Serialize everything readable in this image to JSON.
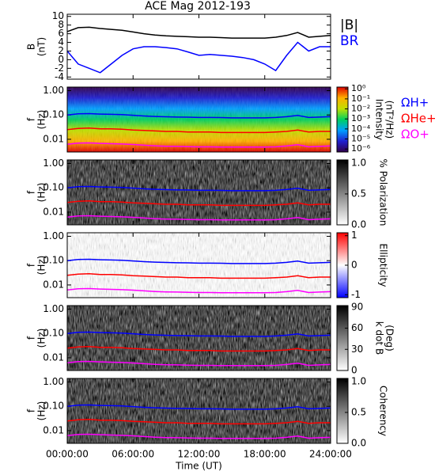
{
  "chart_data": [
    {
      "type": "line",
      "title": "ACE Mag 2012-193",
      "ylabel": [
        "B",
        "(nT)"
      ],
      "x": [
        0,
        1,
        2,
        3,
        4,
        5,
        6,
        7,
        8,
        9,
        10,
        11,
        12,
        13,
        14,
        15,
        16,
        17,
        18,
        19,
        20,
        21,
        22,
        23,
        24
      ],
      "xlim": [
        0,
        24
      ],
      "ylim": [
        -4.5,
        10.5
      ],
      "yticks": [
        -4,
        -2,
        0,
        2,
        4,
        6,
        8,
        10
      ],
      "series": [
        {
          "name": "|B|",
          "color": "#000000",
          "values": [
            6.5,
            7.4,
            7.5,
            7.2,
            7.0,
            6.8,
            6.4,
            6.0,
            5.7,
            5.5,
            5.4,
            5.3,
            5.2,
            5.2,
            5.1,
            5.0,
            5.0,
            5.0,
            5.0,
            5.2,
            5.6,
            6.3,
            5.2,
            5.4,
            5.6
          ]
        },
        {
          "name": "BR",
          "color": "#0000ff",
          "values": [
            2,
            -1,
            -2,
            -3,
            -1,
            1,
            2.5,
            3,
            3,
            2.8,
            2.5,
            1.8,
            1,
            1.2,
            1,
            0.8,
            0.5,
            0,
            -1,
            -2.5,
            1,
            4,
            2,
            3,
            3
          ]
        }
      ]
    },
    {
      "type": "spectrogram",
      "ylabel": [
        "f",
        "(Hz)"
      ],
      "x": [
        0,
        1,
        2,
        3,
        4,
        5,
        6,
        7,
        8,
        9,
        10,
        11,
        12,
        13,
        14,
        15,
        16,
        17,
        18,
        19,
        20,
        21,
        22,
        23,
        24
      ],
      "xlim": [
        0,
        24
      ],
      "ylim": [
        0.003,
        1.4
      ],
      "log_y": true,
      "yticks": [
        {
          "value": 0.01,
          "label": "0.01"
        },
        {
          "value": 0.1,
          "label": "0.10"
        },
        {
          "value": 1,
          "label": "1.00"
        }
      ],
      "colorbar": {
        "label": [
          "Intensity",
          "(nT²/Hz)"
        ],
        "lim": [
          5e-07,
          1.5
        ],
        "log": true,
        "ticks": [
          {
            "value": 1,
            "label": "10⁰"
          },
          {
            "value": 0.1,
            "label": "10⁻¹"
          },
          {
            "value": 0.01,
            "label": "10⁻²"
          },
          {
            "value": 0.001,
            "label": "10⁻³"
          },
          {
            "value": 0.0001,
            "label": "10⁻⁴"
          },
          {
            "value": 1e-05,
            "label": "10⁻⁵"
          },
          {
            "value": 1e-06,
            "label": "10⁻⁶"
          }
        ],
        "colormap": [
          "#30004a",
          "#2020d0",
          "#00a0ff",
          "#00d060",
          "#c0e000",
          "#ffb000",
          "#e00000"
        ]
      },
      "series": [
        {
          "name": "ΩH+",
          "color": "#0000ff",
          "values": [
            0.099,
            0.112,
            0.114,
            0.109,
            0.106,
            0.103,
            0.097,
            0.091,
            0.087,
            0.084,
            0.082,
            0.081,
            0.079,
            0.079,
            0.078,
            0.076,
            0.076,
            0.076,
            0.076,
            0.079,
            0.085,
            0.096,
            0.079,
            0.082,
            0.085
          ]
        },
        {
          "name": "ΩHe+",
          "color": "#ff0000",
          "values": [
            0.025,
            0.028,
            0.029,
            0.027,
            0.027,
            0.026,
            0.024,
            0.023,
            0.022,
            0.021,
            0.021,
            0.02,
            0.02,
            0.02,
            0.019,
            0.019,
            0.019,
            0.019,
            0.019,
            0.02,
            0.021,
            0.024,
            0.02,
            0.021,
            0.021
          ]
        },
        {
          "name": "ΩO+",
          "color": "#ff00ff",
          "values": [
            0.0062,
            0.007,
            0.0071,
            0.0068,
            0.0066,
            0.0064,
            0.0061,
            0.0057,
            0.0054,
            0.0052,
            0.0051,
            0.005,
            0.0049,
            0.0049,
            0.0048,
            0.0048,
            0.0048,
            0.0048,
            0.0048,
            0.0049,
            0.0053,
            0.006,
            0.0049,
            0.0051,
            0.0053
          ]
        }
      ]
    },
    {
      "type": "spectrogram",
      "ylabel": [
        "f",
        "(Hz)"
      ],
      "x": [
        0,
        1,
        2,
        3,
        4,
        5,
        6,
        7,
        8,
        9,
        10,
        11,
        12,
        13,
        14,
        15,
        16,
        17,
        18,
        19,
        20,
        21,
        22,
        23,
        24
      ],
      "xlim": [
        0,
        24
      ],
      "ylim": [
        0.003,
        1.4
      ],
      "log_y": true,
      "yticks": [
        {
          "value": 0.01,
          "label": "0.01"
        },
        {
          "value": 0.1,
          "label": "0.10"
        },
        {
          "value": 1,
          "label": "1.00"
        }
      ],
      "colorbar": {
        "label": [
          "% Polarization"
        ],
        "lim": [
          0,
          1.05
        ],
        "ticks": [
          {
            "value": 0,
            "label": "0.0"
          },
          {
            "value": 0.5,
            "label": "0.5"
          },
          {
            "value": 1,
            "label": "1.0"
          }
        ],
        "colormap": [
          "#ffffff",
          "#000000"
        ]
      },
      "series": [
        {
          "color": "#0000ff",
          "values": [
            0.099,
            0.112,
            0.114,
            0.109,
            0.106,
            0.103,
            0.097,
            0.091,
            0.087,
            0.084,
            0.082,
            0.081,
            0.079,
            0.079,
            0.078,
            0.076,
            0.076,
            0.076,
            0.076,
            0.079,
            0.085,
            0.096,
            0.079,
            0.082,
            0.085
          ]
        },
        {
          "color": "#ff0000",
          "values": [
            0.025,
            0.028,
            0.029,
            0.027,
            0.027,
            0.026,
            0.024,
            0.023,
            0.022,
            0.021,
            0.021,
            0.02,
            0.02,
            0.02,
            0.019,
            0.019,
            0.019,
            0.019,
            0.019,
            0.02,
            0.021,
            0.024,
            0.02,
            0.021,
            0.021
          ]
        },
        {
          "color": "#ff00ff",
          "values": [
            0.0062,
            0.007,
            0.0071,
            0.0068,
            0.0066,
            0.0064,
            0.0061,
            0.0057,
            0.0054,
            0.0052,
            0.0051,
            0.005,
            0.0049,
            0.0049,
            0.0048,
            0.0048,
            0.0048,
            0.0048,
            0.0048,
            0.0049,
            0.0053,
            0.006,
            0.0049,
            0.0051,
            0.0053
          ]
        }
      ]
    },
    {
      "type": "spectrogram",
      "ylabel": [
        "f",
        "(Hz)"
      ],
      "x": [
        0,
        1,
        2,
        3,
        4,
        5,
        6,
        7,
        8,
        9,
        10,
        11,
        12,
        13,
        14,
        15,
        16,
        17,
        18,
        19,
        20,
        21,
        22,
        23,
        24
      ],
      "xlim": [
        0,
        24
      ],
      "ylim": [
        0.003,
        1.4
      ],
      "log_y": true,
      "yticks": [
        {
          "value": 0.01,
          "label": "0.01"
        },
        {
          "value": 0.1,
          "label": "0.10"
        },
        {
          "value": 1,
          "label": "1.00"
        }
      ],
      "colorbar": {
        "label": [
          "Ellipticity"
        ],
        "lim": [
          -1.1,
          1.1
        ],
        "ticks": [
          -1,
          0,
          1
        ],
        "colormap": [
          "#0000ff",
          "#ffffff",
          "#ff0000"
        ]
      },
      "series": [
        {
          "color": "#0000ff",
          "values": [
            0.099,
            0.112,
            0.114,
            0.109,
            0.106,
            0.103,
            0.097,
            0.091,
            0.087,
            0.084,
            0.082,
            0.081,
            0.079,
            0.079,
            0.078,
            0.076,
            0.076,
            0.076,
            0.076,
            0.079,
            0.085,
            0.096,
            0.079,
            0.082,
            0.085
          ]
        },
        {
          "color": "#ff0000",
          "values": [
            0.025,
            0.028,
            0.029,
            0.027,
            0.027,
            0.026,
            0.024,
            0.023,
            0.022,
            0.021,
            0.021,
            0.02,
            0.02,
            0.02,
            0.019,
            0.019,
            0.019,
            0.019,
            0.019,
            0.02,
            0.021,
            0.024,
            0.02,
            0.021,
            0.021
          ]
        },
        {
          "color": "#ff00ff",
          "values": [
            0.0062,
            0.007,
            0.0071,
            0.0068,
            0.0066,
            0.0064,
            0.0061,
            0.0057,
            0.0054,
            0.0052,
            0.0051,
            0.005,
            0.0049,
            0.0049,
            0.0048,
            0.0048,
            0.0048,
            0.0048,
            0.0048,
            0.0049,
            0.0053,
            0.006,
            0.0049,
            0.0051,
            0.0053
          ]
        }
      ]
    },
    {
      "type": "spectrogram",
      "ylabel": [
        "f",
        "(Hz)"
      ],
      "x": [
        0,
        1,
        2,
        3,
        4,
        5,
        6,
        7,
        8,
        9,
        10,
        11,
        12,
        13,
        14,
        15,
        16,
        17,
        18,
        19,
        20,
        21,
        22,
        23,
        24
      ],
      "xlim": [
        0,
        24
      ],
      "ylim": [
        0.003,
        1.4
      ],
      "log_y": true,
      "yticks": [
        {
          "value": 0.01,
          "label": "0.01"
        },
        {
          "value": 0.1,
          "label": "0.10"
        },
        {
          "value": 1,
          "label": "1.00"
        }
      ],
      "colorbar": {
        "label": [
          "k dot B",
          "(Deg)"
        ],
        "lim": [
          0,
          92
        ],
        "ticks": [
          0,
          30,
          60,
          90
        ],
        "colormap": [
          "#ffffff",
          "#000000"
        ]
      },
      "series": [
        {
          "color": "#0000ff",
          "values": [
            0.099,
            0.112,
            0.114,
            0.109,
            0.106,
            0.103,
            0.097,
            0.091,
            0.087,
            0.084,
            0.082,
            0.081,
            0.079,
            0.079,
            0.078,
            0.076,
            0.076,
            0.076,
            0.076,
            0.079,
            0.085,
            0.096,
            0.079,
            0.082,
            0.085
          ]
        },
        {
          "color": "#ff0000",
          "values": [
            0.025,
            0.028,
            0.029,
            0.027,
            0.027,
            0.026,
            0.024,
            0.023,
            0.022,
            0.021,
            0.021,
            0.02,
            0.02,
            0.02,
            0.019,
            0.019,
            0.019,
            0.019,
            0.019,
            0.02,
            0.021,
            0.024,
            0.02,
            0.021,
            0.021
          ]
        },
        {
          "color": "#ff00ff",
          "values": [
            0.0062,
            0.007,
            0.0071,
            0.0068,
            0.0066,
            0.0064,
            0.0061,
            0.0057,
            0.0054,
            0.0052,
            0.0051,
            0.005,
            0.0049,
            0.0049,
            0.0048,
            0.0048,
            0.0048,
            0.0048,
            0.0048,
            0.0049,
            0.0053,
            0.006,
            0.0049,
            0.0051,
            0.0053
          ]
        }
      ]
    },
    {
      "type": "spectrogram",
      "ylabel": [
        "f",
        "(Hz)"
      ],
      "xlabel": "Time (UT)",
      "x": [
        0,
        1,
        2,
        3,
        4,
        5,
        6,
        7,
        8,
        9,
        10,
        11,
        12,
        13,
        14,
        15,
        16,
        17,
        18,
        19,
        20,
        21,
        22,
        23,
        24
      ],
      "xlim": [
        0,
        24
      ],
      "xticks": [
        {
          "value": 0,
          "label": "00:00:00"
        },
        {
          "value": 6,
          "label": "06:00:00"
        },
        {
          "value": 12,
          "label": "12:00:00"
        },
        {
          "value": 18,
          "label": "18:00:00"
        },
        {
          "value": 24,
          "label": "24:00:00"
        }
      ],
      "ylim": [
        0.003,
        1.4
      ],
      "log_y": true,
      "yticks": [
        {
          "value": 0.01,
          "label": "0.01"
        },
        {
          "value": 0.1,
          "label": "0.10"
        },
        {
          "value": 1,
          "label": "1.00"
        }
      ],
      "colorbar": {
        "label": [
          "Coherency"
        ],
        "lim": [
          0,
          1.05
        ],
        "ticks": [
          {
            "value": 0,
            "label": "0.0"
          },
          {
            "value": 0.5,
            "label": "0.5"
          },
          {
            "value": 1,
            "label": "1.0"
          }
        ],
        "colormap": [
          "#ffffff",
          "#000000"
        ]
      },
      "series": [
        {
          "color": "#0000ff",
          "values": [
            0.099,
            0.112,
            0.114,
            0.109,
            0.106,
            0.103,
            0.097,
            0.091,
            0.087,
            0.084,
            0.082,
            0.081,
            0.079,
            0.079,
            0.078,
            0.076,
            0.076,
            0.076,
            0.076,
            0.079,
            0.085,
            0.096,
            0.079,
            0.082,
            0.085
          ]
        },
        {
          "color": "#ff0000",
          "values": [
            0.025,
            0.028,
            0.029,
            0.027,
            0.027,
            0.026,
            0.024,
            0.023,
            0.022,
            0.021,
            0.021,
            0.02,
            0.02,
            0.02,
            0.019,
            0.019,
            0.019,
            0.019,
            0.019,
            0.02,
            0.021,
            0.024,
            0.02,
            0.021,
            0.021
          ]
        },
        {
          "color": "#ff00ff",
          "values": [
            0.0062,
            0.007,
            0.0071,
            0.0068,
            0.0066,
            0.0064,
            0.0061,
            0.0057,
            0.0054,
            0.0052,
            0.0051,
            0.005,
            0.0049,
            0.0049,
            0.0048,
            0.0048,
            0.0048,
            0.0048,
            0.0048,
            0.0049,
            0.0053,
            0.006,
            0.0049,
            0.0051,
            0.0053
          ]
        }
      ]
    }
  ]
}
